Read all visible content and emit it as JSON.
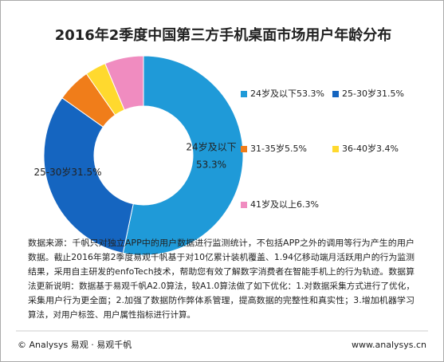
{
  "chart_data": {
    "type": "donut",
    "title": "2016年2季度中国第三方手机桌面市场用户年龄分布",
    "categories": [
      "24岁及以下",
      "25-30岁",
      "31-35岁",
      "36-40岁",
      "41岁及以上"
    ],
    "values": [
      53.3,
      31.5,
      5.5,
      3.4,
      6.3
    ],
    "value_labels": [
      "53.3%",
      "31.5%",
      "5.5%",
      "3.4%",
      "6.3%"
    ],
    "colors": [
      "#1f9ad8",
      "#1565c0",
      "#f07d1a",
      "#ffd92e",
      "#f08cc0"
    ],
    "inner_labels": [
      0,
      1
    ]
  },
  "notes": [
    "数据来源：千帆只对独立APP中的用户数据进行监测统计，不包括APP之外的调用等行为产生的用户",
    "数据。截止2016年第2季度易观千帆基于对10亿累计装机覆盖、1.94亿移动端月活跃用户的行为监测",
    "结果，采用自主研发的enfoTech技术，帮助您有效了解数字消费者在智能手机上的行为轨迹。数据算",
    "法更新说明：数据基于易观千帆A2.0算法，较A1.0算法做了如下优化：1.对数据采集方式进行了优化，",
    "采集用户行为更全面；2.加强了数据防作弊体系管理，提高数据的完整性和真实性；3.增加机器学习",
    "算法，对用户标签、用户属性指标进行计算。"
  ],
  "footer": {
    "left": "© Analysys 易观 · 易观千帆",
    "right": "www.analysys.cn"
  }
}
